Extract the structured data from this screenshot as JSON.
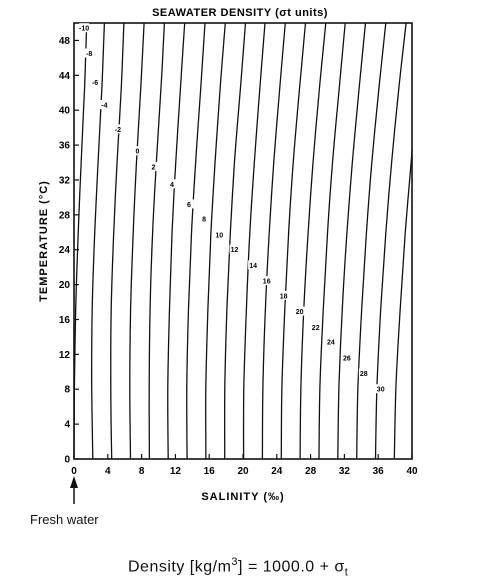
{
  "chart_data": {
    "type": "line",
    "title": "SEAWATER DENSITY (σt units)",
    "xlabel": "SALINITY (‰)",
    "ylabel": "TEMPERATURE (°C)",
    "xlim": [
      0,
      40
    ],
    "ylim": [
      0,
      50
    ],
    "x_ticks": [
      0,
      4,
      8,
      12,
      16,
      20,
      24,
      28,
      32,
      36,
      40
    ],
    "y_ticks": [
      0,
      4,
      8,
      12,
      16,
      20,
      24,
      28,
      32,
      36,
      40,
      44,
      48
    ],
    "grid": false,
    "contour_labels": [
      {
        "label": "-10",
        "salinity": 1.2,
        "temperature": 49.4
      },
      {
        "label": "-8",
        "salinity": 1.8,
        "temperature": 46.5
      },
      {
        "label": "-6",
        "salinity": 2.5,
        "temperature": 43.2
      },
      {
        "label": "-4",
        "salinity": 3.6,
        "temperature": 40.6
      },
      {
        "label": "-2",
        "salinity": 5.2,
        "temperature": 37.8
      },
      {
        "label": "0",
        "salinity": 7.5,
        "temperature": 35.3
      },
      {
        "label": "2",
        "salinity": 9.4,
        "temperature": 33.5
      },
      {
        "label": "4",
        "salinity": 11.6,
        "temperature": 31.5
      },
      {
        "label": "6",
        "salinity": 13.6,
        "temperature": 29.2
      },
      {
        "label": "8",
        "salinity": 15.4,
        "temperature": 27.5
      },
      {
        "label": "10",
        "salinity": 17.2,
        "temperature": 25.7
      },
      {
        "label": "12",
        "salinity": 19.0,
        "temperature": 24.0
      },
      {
        "label": "14",
        "salinity": 21.2,
        "temperature": 22.2
      },
      {
        "label": "16",
        "salinity": 22.8,
        "temperature": 20.4
      },
      {
        "label": "18",
        "salinity": 24.8,
        "temperature": 18.7
      },
      {
        "label": "20",
        "salinity": 26.7,
        "temperature": 16.9
      },
      {
        "label": "22",
        "salinity": 28.6,
        "temperature": 15.1
      },
      {
        "label": "24",
        "salinity": 30.4,
        "temperature": 13.4
      },
      {
        "label": "26",
        "salinity": 32.3,
        "temperature": 11.6
      },
      {
        "label": "28",
        "salinity": 34.3,
        "temperature": 9.8
      },
      {
        "label": "30",
        "salinity": 36.3,
        "temperature": 8.0
      }
    ],
    "series": [
      {
        "values": [
          [
            0,
            0
          ],
          [
            0.05,
            8.2
          ],
          [
            0.2,
            17.2
          ],
          [
            0.5,
            25.9
          ],
          [
            0.85,
            34.1
          ],
          [
            1.25,
            42.6
          ],
          [
            1.5,
            50
          ]
        ]
      },
      {
        "values": [
          [
            2.23,
            0
          ],
          [
            2.1,
            8.2
          ],
          [
            2.15,
            17.2
          ],
          [
            2.45,
            25.9
          ],
          [
            2.85,
            34.1
          ],
          [
            3.3,
            42.6
          ],
          [
            3.6,
            50
          ]
        ]
      },
      {
        "values": [
          [
            4.46,
            0
          ],
          [
            4.35,
            8.2
          ],
          [
            4.4,
            17.2
          ],
          [
            4.7,
            25.9
          ],
          [
            5.1,
            34.1
          ],
          [
            5.6,
            42.6
          ],
          [
            5.9,
            50
          ]
        ]
      },
      {
        "values": [
          [
            6.69,
            0
          ],
          [
            6.6,
            8.2
          ],
          [
            6.7,
            17.2
          ],
          [
            7.0,
            25.9
          ],
          [
            7.4,
            34.1
          ],
          [
            7.9,
            42.6
          ],
          [
            8.3,
            50
          ]
        ]
      },
      {
        "values": [
          [
            8.92,
            0
          ],
          [
            8.9,
            8.2
          ],
          [
            9.0,
            17.2
          ],
          [
            9.3,
            25.9
          ],
          [
            9.75,
            34.1
          ],
          [
            10.3,
            42.6
          ],
          [
            10.7,
            50
          ]
        ]
      },
      {
        "values": [
          [
            11.15,
            0
          ],
          [
            11.1,
            8.2
          ],
          [
            11.3,
            17.2
          ],
          [
            11.6,
            25.9
          ],
          [
            12.05,
            34.1
          ],
          [
            12.6,
            42.6
          ],
          [
            13.1,
            50
          ]
        ]
      },
      {
        "values": [
          [
            13.38,
            0
          ],
          [
            13.35,
            8.2
          ],
          [
            13.55,
            17.2
          ],
          [
            13.9,
            25.9
          ],
          [
            14.4,
            34.1
          ],
          [
            15.0,
            42.6
          ],
          [
            15.5,
            50
          ]
        ]
      },
      {
        "values": [
          [
            15.61,
            0
          ],
          [
            15.6,
            8.2
          ],
          [
            15.85,
            17.2
          ],
          [
            16.2,
            25.9
          ],
          [
            16.7,
            34.1
          ],
          [
            17.3,
            42.6
          ],
          [
            17.9,
            50
          ]
        ]
      },
      {
        "values": [
          [
            17.84,
            0
          ],
          [
            17.85,
            8.2
          ],
          [
            18.1,
            17.2
          ],
          [
            18.5,
            25.9
          ],
          [
            19.0,
            34.1
          ],
          [
            19.7,
            42.6
          ],
          [
            20.3,
            50
          ]
        ]
      },
      {
        "values": [
          [
            20.07,
            0
          ],
          [
            20.1,
            8.2
          ],
          [
            20.4,
            17.2
          ],
          [
            20.8,
            25.9
          ],
          [
            21.35,
            34.1
          ],
          [
            22.0,
            42.6
          ],
          [
            22.6,
            50
          ]
        ]
      },
      {
        "values": [
          [
            22.3,
            0
          ],
          [
            22.35,
            8.2
          ],
          [
            22.65,
            17.2
          ],
          [
            23.1,
            25.9
          ],
          [
            23.65,
            34.1
          ],
          [
            24.35,
            42.6
          ],
          [
            25.0,
            50
          ]
        ]
      },
      {
        "values": [
          [
            24.53,
            0
          ],
          [
            24.6,
            8.2
          ],
          [
            24.95,
            17.2
          ],
          [
            25.4,
            25.9
          ],
          [
            25.95,
            34.1
          ],
          [
            26.7,
            42.6
          ],
          [
            27.4,
            50
          ]
        ]
      },
      {
        "values": [
          [
            26.76,
            0
          ],
          [
            26.85,
            8.2
          ],
          [
            27.2,
            17.2
          ],
          [
            27.7,
            25.9
          ],
          [
            28.3,
            34.1
          ],
          [
            29.05,
            42.6
          ],
          [
            29.8,
            50
          ]
        ]
      },
      {
        "values": [
          [
            28.99,
            0
          ],
          [
            29.1,
            8.2
          ],
          [
            29.5,
            17.2
          ],
          [
            30.0,
            25.9
          ],
          [
            30.6,
            34.1
          ],
          [
            31.4,
            42.6
          ],
          [
            32.1,
            50
          ]
        ]
      },
      {
        "values": [
          [
            31.22,
            0
          ],
          [
            31.35,
            8.2
          ],
          [
            31.75,
            17.2
          ],
          [
            32.3,
            25.9
          ],
          [
            32.95,
            34.1
          ],
          [
            33.75,
            42.6
          ],
          [
            34.5,
            50
          ]
        ]
      },
      {
        "values": [
          [
            33.45,
            0
          ],
          [
            33.6,
            8.2
          ],
          [
            34.05,
            17.2
          ],
          [
            34.6,
            25.9
          ],
          [
            35.25,
            34.1
          ],
          [
            36.1,
            42.6
          ],
          [
            36.9,
            50
          ]
        ]
      },
      {
        "values": [
          [
            35.68,
            0
          ],
          [
            35.85,
            8.2
          ],
          [
            36.3,
            17.2
          ],
          [
            36.9,
            25.9
          ],
          [
            37.6,
            34.1
          ],
          [
            38.45,
            42.6
          ],
          [
            39.3,
            50
          ]
        ]
      },
      {
        "values": [
          [
            37.91,
            0
          ],
          [
            38.1,
            8.2
          ],
          [
            38.6,
            17.2
          ],
          [
            39.2,
            25.9
          ],
          [
            39.9,
            34.1
          ],
          [
            40,
            35.5
          ]
        ]
      },
      {
        "values": [
          [
            40,
            0.3
          ]
        ]
      }
    ]
  },
  "annotations": {
    "fresh_water": "Fresh water",
    "formula_prefix": "Density [kg/m",
    "formula_exponent": "3",
    "formula_middle": "] = 1000.0 + σ",
    "formula_subscript": "t"
  }
}
